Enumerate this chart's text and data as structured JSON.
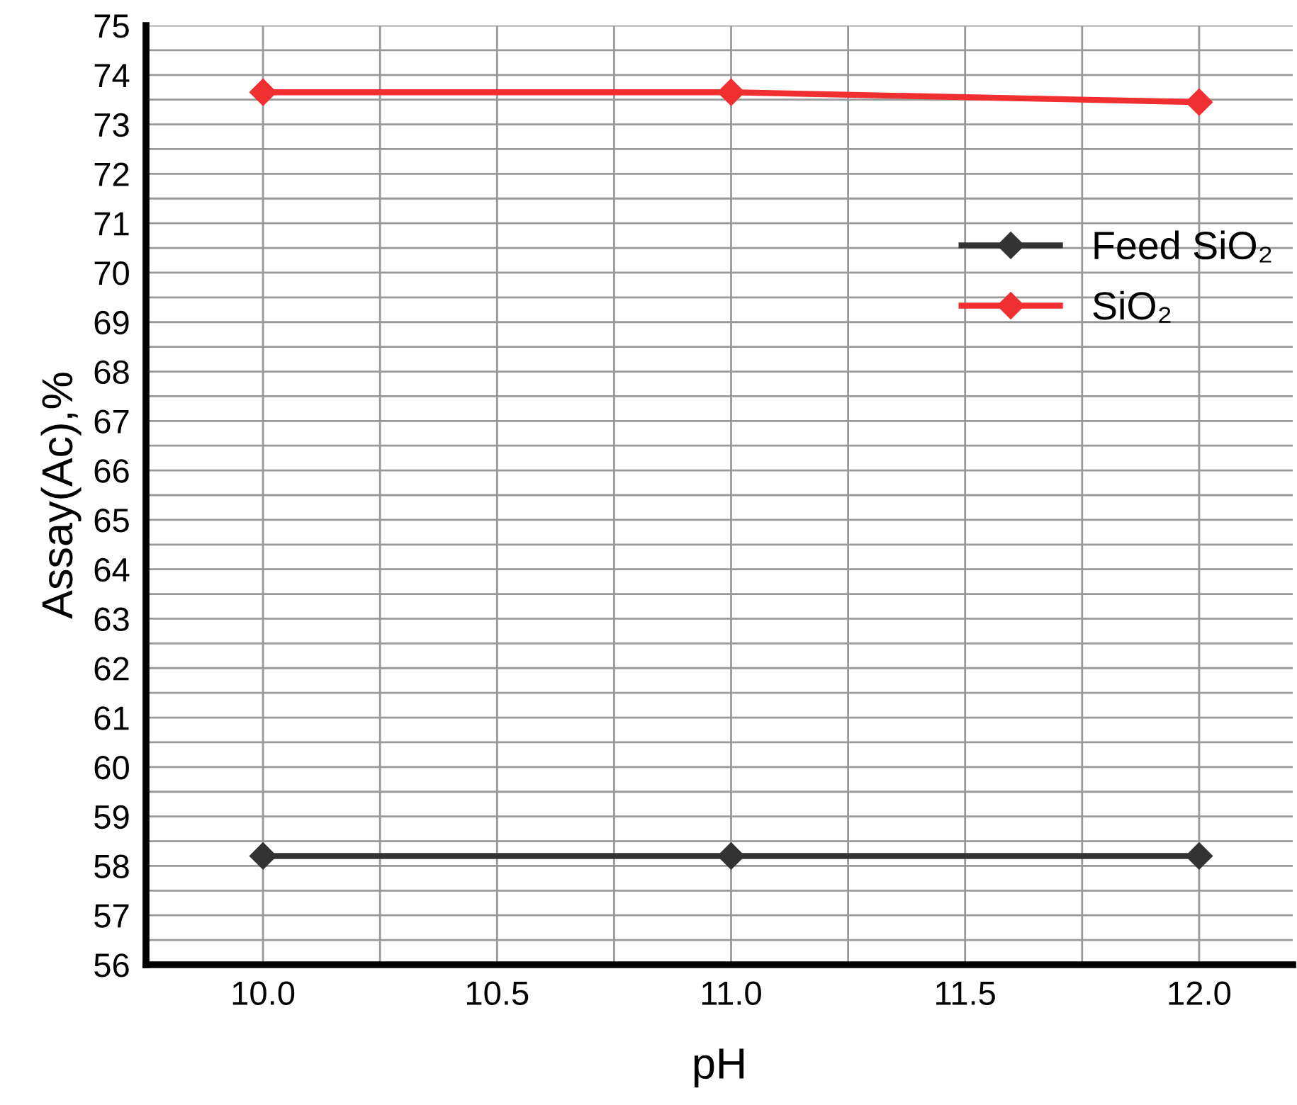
{
  "chart_data": {
    "type": "line",
    "xlabel": "pH",
    "ylabel": "Assay(Ac),%",
    "x": [
      10.0,
      11.0,
      12.0
    ],
    "series": [
      {
        "name": "Feed SiO₂",
        "color": "#333333",
        "values": [
          58.2,
          58.2,
          58.2
        ]
      },
      {
        "name": "SiO₂",
        "color": "#f03030",
        "values": [
          73.65,
          73.65,
          73.45
        ]
      }
    ],
    "xlim": [
      9.75,
      12.2
    ],
    "xticks": [
      {
        "value": 10.0,
        "label": "10.0"
      },
      {
        "value": 10.25,
        "label": null
      },
      {
        "value": 10.5,
        "label": "10.5"
      },
      {
        "value": 10.75,
        "label": null
      },
      {
        "value": 11.0,
        "label": "11.0"
      },
      {
        "value": 11.25,
        "label": null
      },
      {
        "value": 11.5,
        "label": "11.5"
      },
      {
        "value": 11.75,
        "label": null
      },
      {
        "value": 12.0,
        "label": "12.0"
      }
    ],
    "ylim": [
      56,
      75
    ],
    "yticks": [
      56,
      {
        "value": 56.5,
        "label": null
      },
      57,
      {
        "value": 57.5,
        "label": null
      },
      58,
      {
        "value": 58.5,
        "label": null
      },
      59,
      {
        "value": 59.5,
        "label": null
      },
      60,
      {
        "value": 60.5,
        "label": null
      },
      61,
      {
        "value": 61.5,
        "label": null
      },
      62,
      {
        "value": 62.5,
        "label": null
      },
      63,
      {
        "value": 63.5,
        "label": null
      },
      64,
      {
        "value": 64.5,
        "label": null
      },
      65,
      {
        "value": 65.5,
        "label": null
      },
      66,
      {
        "value": 66.5,
        "label": null
      },
      67,
      {
        "value": 67.5,
        "label": null
      },
      68,
      {
        "value": 68.5,
        "label": null
      },
      69,
      {
        "value": 69.5,
        "label": null
      },
      70,
      {
        "value": 70.5,
        "label": null
      },
      71,
      {
        "value": 71.5,
        "label": null
      },
      72,
      {
        "value": 72.5,
        "label": null
      },
      73,
      {
        "value": 73.5,
        "label": null
      },
      74,
      {
        "value": 74.5,
        "label": null
      },
      75
    ],
    "grid": true,
    "legend": "right",
    "marker": "diamond",
    "line_style": "solid"
  }
}
